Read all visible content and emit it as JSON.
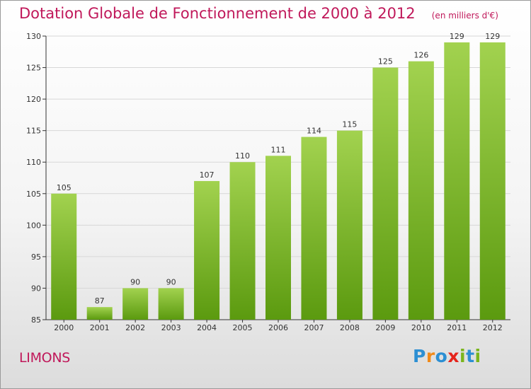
{
  "chart_data": {
    "type": "bar",
    "title": "Dotation Globale de Fonctionnement de 2000 à 2012",
    "subtitle": "(en milliers d'€)",
    "categories": [
      "2000",
      "2001",
      "2002",
      "2003",
      "2004",
      "2005",
      "2006",
      "2007",
      "2008",
      "2009",
      "2010",
      "2011",
      "2012"
    ],
    "values": [
      105,
      87,
      90,
      90,
      107,
      110,
      111,
      114,
      115,
      125,
      126,
      129,
      129
    ],
    "ylim": [
      85,
      130
    ],
    "yticks": [
      85,
      90,
      95,
      100,
      105,
      110,
      115,
      120,
      125,
      130
    ],
    "grid": true,
    "colors": {
      "bar_top": "#a2d24f",
      "bar_bottom": "#5b9a0f",
      "title": "#c0185a"
    }
  },
  "place_name": "LIMONS",
  "logo": {
    "text": "Proxiti"
  }
}
